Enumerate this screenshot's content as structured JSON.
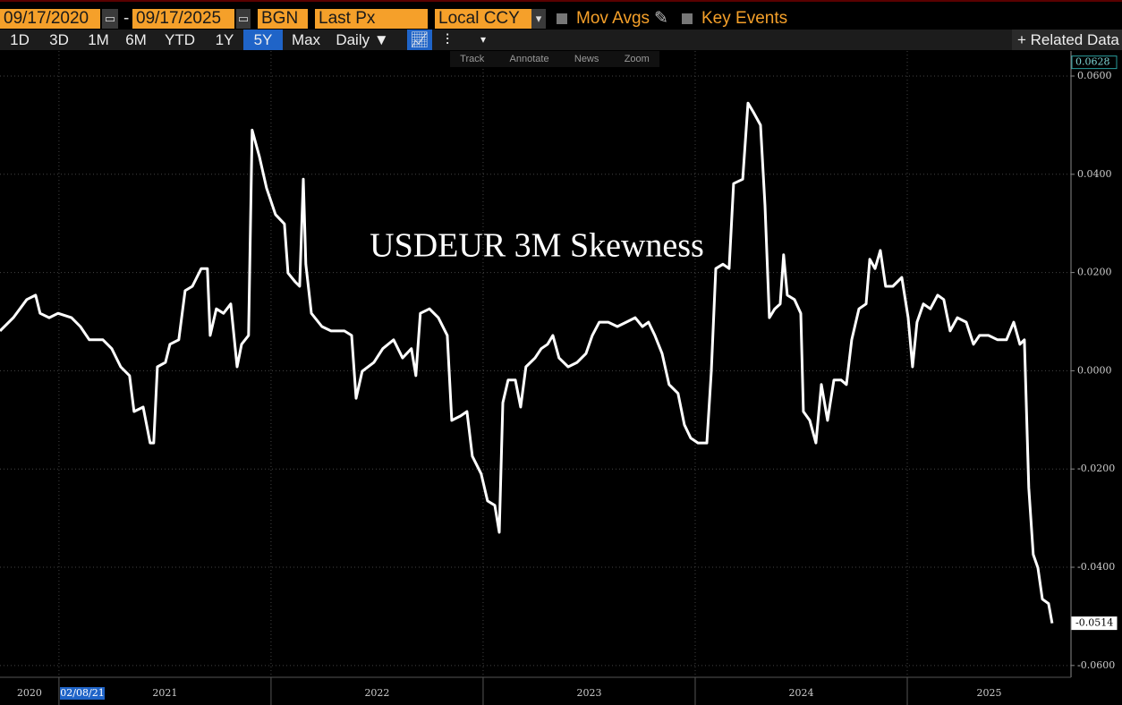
{
  "toolbar": {
    "start_date": "09/17/2020",
    "dash": "-",
    "end_date": "09/17/2025",
    "source": "BGN",
    "field": "Last Px",
    "currency": "Local CCY",
    "mov_avgs": "Mov Avgs",
    "key_events": "Key Events",
    "periods": [
      "1D",
      "3D",
      "1M",
      "6M",
      "YTD",
      "1Y",
      "5Y",
      "Max"
    ],
    "active_period": "5Y",
    "frequency": "Daily ▼",
    "related": "Related Data",
    "chart_tools": [
      "Track",
      "Annotate",
      "News",
      "Zoom"
    ]
  },
  "chart_data": {
    "type": "line",
    "title": "USDEUR 3M Skewness",
    "color": "#ffffff",
    "grid": true,
    "crosshair_label": "02/08/21",
    "x": [
      2020.722,
      2020.785,
      2020.848,
      2020.89,
      2020.911,
      2020.954,
      2020.996,
      2021.059,
      2021.101,
      2021.143,
      2021.207,
      2021.249,
      2021.291,
      2021.333,
      2021.354,
      2021.397,
      2021.43,
      2021.447,
      2021.464,
      2021.502,
      2021.523,
      2021.565,
      2021.595,
      2021.629,
      2021.671,
      2021.7,
      2021.713,
      2021.742,
      2021.776,
      2021.81,
      2021.84,
      2021.861,
      2021.894,
      2021.911,
      2021.945,
      2021.979,
      2022.021,
      2022.063,
      2022.08,
      2022.114,
      2022.135,
      2022.152,
      2022.164,
      2022.19,
      2022.24,
      2022.283,
      2022.346,
      2022.38,
      2022.401,
      2022.43,
      2022.485,
      2022.527,
      2022.578,
      2022.62,
      2022.662,
      2022.683,
      2022.704,
      2022.747,
      2022.789,
      2022.831,
      2022.852,
      2022.894,
      2022.924,
      2022.949,
      2022.991,
      2023.021,
      2023.055,
      2023.076,
      2023.093,
      2023.118,
      2023.152,
      2023.177,
      2023.202,
      2023.245,
      2023.274,
      2023.304,
      2023.329,
      2023.358,
      2023.401,
      2023.443,
      2023.485,
      2023.515,
      2023.548,
      2023.59,
      2023.633,
      2023.675,
      2023.717,
      2023.751,
      2023.78,
      2023.81,
      2023.844,
      2023.877,
      2023.919,
      2023.949,
      2023.979,
      2024.013,
      2024.055,
      2024.076,
      2024.097,
      2024.131,
      2024.16,
      2024.181,
      2024.224,
      2024.249,
      2024.274,
      2024.308,
      2024.329,
      2024.35,
      2024.375,
      2024.401,
      2024.417,
      2024.434,
      2024.468,
      2024.498,
      2024.51,
      2024.54,
      2024.569,
      2024.595,
      2024.624,
      2024.654,
      2024.688,
      2024.713,
      2024.738,
      2024.772,
      2024.806,
      2024.823,
      2024.848,
      2024.873,
      2024.898,
      2024.932,
      2024.974,
      2025.004,
      2025.025,
      2025.046,
      2025.076,
      2025.109,
      2025.143,
      2025.172,
      2025.202,
      2025.236,
      2025.278,
      2025.312,
      2025.341,
      2025.383,
      2025.426,
      2025.468,
      2025.502,
      2025.531,
      2025.552,
      2025.573,
      2025.594,
      2025.616,
      2025.637,
      2025.666,
      2025.683
    ],
    "values": [
      0.0081,
      0.0108,
      0.0145,
      0.0154,
      0.0117,
      0.0108,
      0.0117,
      0.0108,
      0.009,
      0.0063,
      0.0063,
      0.0045,
      0.0008,
      -0.001,
      -0.0083,
      -0.0074,
      -0.0147,
      -0.0147,
      0.0008,
      0.0017,
      0.0054,
      0.0063,
      0.0163,
      0.0172,
      0.0208,
      0.0208,
      0.0072,
      0.0126,
      0.0117,
      0.0136,
      0.0008,
      0.0054,
      0.0072,
      0.049,
      0.0436,
      0.0372,
      0.0318,
      0.0299,
      0.0199,
      0.0181,
      0.0172,
      0.039,
      0.0217,
      0.0117,
      0.009,
      0.0081,
      0.0081,
      0.0072,
      -0.0056,
      -0.0001,
      0.0017,
      0.0045,
      0.0063,
      0.0026,
      0.0045,
      -0.001,
      0.0117,
      0.0126,
      0.0108,
      0.0072,
      -0.0101,
      -0.0092,
      -0.0083,
      -0.0174,
      -0.021,
      -0.0265,
      -0.0274,
      -0.0329,
      -0.0065,
      -0.0019,
      -0.0019,
      -0.0074,
      0.0008,
      0.0026,
      0.0045,
      0.0054,
      0.0072,
      0.0026,
      0.0008,
      0.0017,
      0.0035,
      0.0072,
      0.0099,
      0.0099,
      0.009,
      0.0099,
      0.0108,
      0.009,
      0.0099,
      0.0072,
      0.0035,
      -0.0028,
      -0.0046,
      -0.011,
      -0.0137,
      -0.0147,
      -0.0147,
      -0.0001,
      0.0208,
      0.0217,
      0.0208,
      0.0381,
      0.039,
      0.0545,
      0.0527,
      0.05,
      0.0336,
      0.0108,
      0.0126,
      0.0136,
      0.0236,
      0.0154,
      0.0145,
      0.0117,
      -0.0083,
      -0.0101,
      -0.0147,
      -0.0028,
      -0.0101,
      -0.0019,
      -0.0019,
      -0.0028,
      0.0063,
      0.0126,
      0.0136,
      0.0227,
      0.0208,
      0.0245,
      0.0172,
      0.0172,
      0.019,
      0.0108,
      0.0008,
      0.0099,
      0.0136,
      0.0126,
      0.0154,
      0.0145,
      0.0081,
      0.0108,
      0.0099,
      0.0054,
      0.0072,
      0.0072,
      0.0063,
      0.0063,
      0.0099,
      0.0054,
      0.0063,
      -0.0238,
      -0.0374,
      -0.0401,
      -0.0465,
      -0.0474,
      -0.0514
    ],
    "xlim": [
      2020.722,
      2025.772
    ],
    "xticks": [
      2020,
      2021,
      2022,
      2023,
      2024,
      2025
    ],
    "ylim": [
      -0.0624,
      0.0651
    ],
    "yticks": [
      {
        "value": -0.06,
        "label": "-0.0600"
      },
      {
        "value": -0.04,
        "label": "-0.0400"
      },
      {
        "value": -0.02,
        "label": "-0.0200"
      },
      {
        "value": 0,
        "label": "0.0000"
      },
      {
        "value": 0.02,
        "label": "0.0200"
      },
      {
        "value": 0.04,
        "label": "0.0400"
      },
      {
        "value": 0.06,
        "label": "0.0600"
      }
    ],
    "marker_labels": [
      {
        "value": 0.0628,
        "label": "0.0628"
      },
      {
        "value": -0.0514,
        "label": "-0.0514"
      }
    ]
  }
}
